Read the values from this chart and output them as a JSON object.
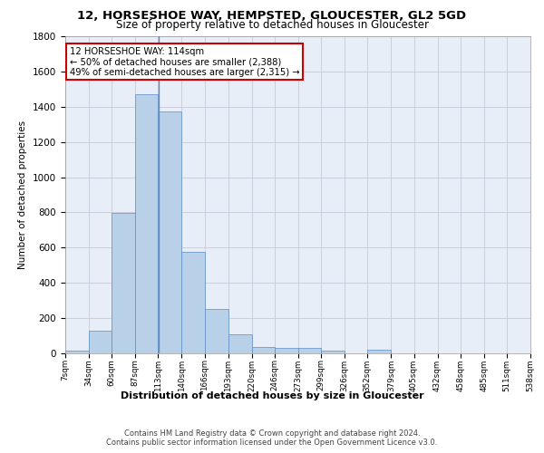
{
  "title": "12, HORSESHOE WAY, HEMPSTED, GLOUCESTER, GL2 5GD",
  "subtitle": "Size of property relative to detached houses in Gloucester",
  "xlabel": "Distribution of detached houses by size in Gloucester",
  "ylabel": "Number of detached properties",
  "bar_color": "#b8d0e8",
  "bar_edge_color": "#5b8cc8",
  "background_color": "#e8eef8",
  "grid_color": "#c8c8d8",
  "annotation_line_color": "#5b8cc8",
  "annotation_box_color": "#cc0000",
  "annotation_text": "12 HORSESHOE WAY: 114sqm\n← 50% of detached houses are smaller (2,388)\n49% of semi-detached houses are larger (2,315) →",
  "property_size": 114,
  "bin_edges": [
    7,
    34,
    60,
    87,
    113,
    140,
    166,
    193,
    220,
    246,
    273,
    299,
    326,
    352,
    379,
    405,
    432,
    458,
    485,
    511,
    538
  ],
  "bin_labels": [
    "7sqm",
    "34sqm",
    "60sqm",
    "87sqm",
    "113sqm",
    "140sqm",
    "166sqm",
    "193sqm",
    "220sqm",
    "246sqm",
    "273sqm",
    "299sqm",
    "326sqm",
    "352sqm",
    "379sqm",
    "405sqm",
    "432sqm",
    "458sqm",
    "485sqm",
    "511sqm",
    "538sqm"
  ],
  "bar_heights": [
    15,
    130,
    795,
    1470,
    1375,
    575,
    250,
    110,
    35,
    30,
    30,
    15,
    0,
    20,
    0,
    0,
    0,
    0,
    0,
    0
  ],
  "ylim": [
    0,
    1800
  ],
  "yticks": [
    0,
    200,
    400,
    600,
    800,
    1000,
    1200,
    1400,
    1600,
    1800
  ],
  "footer_line1": "Contains HM Land Registry data © Crown copyright and database right 2024.",
  "footer_line2": "Contains public sector information licensed under the Open Government Licence v3.0."
}
